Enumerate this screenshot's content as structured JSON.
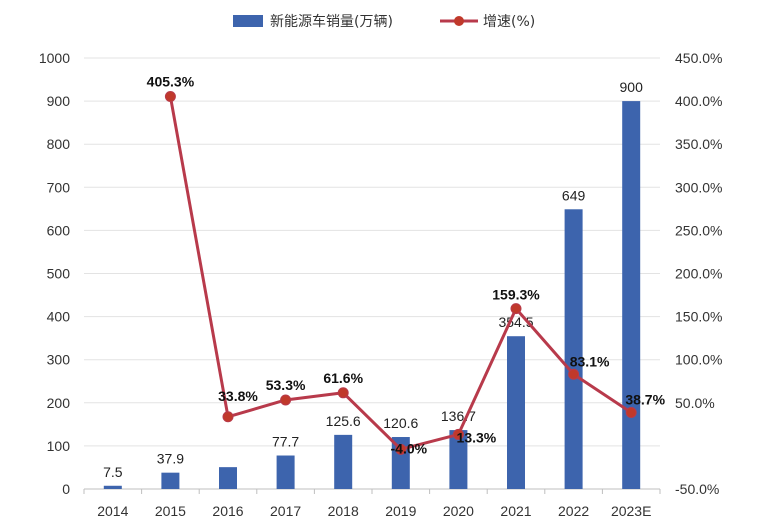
{
  "chart_data": {
    "type": "bar+line",
    "title": "",
    "categories": [
      "2014",
      "2015",
      "2016",
      "2017",
      "2018",
      "2019",
      "2020",
      "2021",
      "2022",
      "2023E"
    ],
    "series": [
      {
        "name": "新能源车销量(万辆)",
        "type": "bar",
        "axis": "left",
        "values": [
          7.5,
          37.9,
          50.7,
          77.7,
          125.6,
          120.6,
          136.7,
          354.5,
          649,
          900
        ],
        "labels": [
          "7.5",
          "37.9",
          "",
          "77.7",
          "125.6",
          "120.6",
          "136.7",
          "354.5",
          "649",
          "900"
        ]
      },
      {
        "name": "增速(%)",
        "type": "line",
        "axis": "right",
        "values": [
          null,
          405.3,
          33.8,
          53.3,
          61.6,
          -4.0,
          13.3,
          159.3,
          83.1,
          38.7
        ],
        "labels": [
          "",
          "405.3%",
          "33.8%",
          "53.3%",
          "61.6%",
          "-4.0%",
          "13.3%",
          "159.3%",
          "83.1%",
          "38.7%"
        ]
      }
    ],
    "y_left": {
      "min": 0,
      "max": 1000,
      "ticks": [
        "0",
        "100",
        "200",
        "300",
        "400",
        "500",
        "600",
        "700",
        "800",
        "900",
        "1000"
      ]
    },
    "y_right": {
      "min": -50,
      "max": 450,
      "ticks": [
        "-50.0%",
        "",
        "50.0%",
        "100.0%",
        "150.0%",
        "200.0%",
        "250.0%",
        "300.0%",
        "350.0%",
        "400.0%",
        "450.0%"
      ]
    },
    "legend_position": "top-center",
    "grid": true,
    "colors": {
      "bar": "#3d64ad",
      "line": "#b83a4b",
      "marker": "#c0392b"
    }
  }
}
